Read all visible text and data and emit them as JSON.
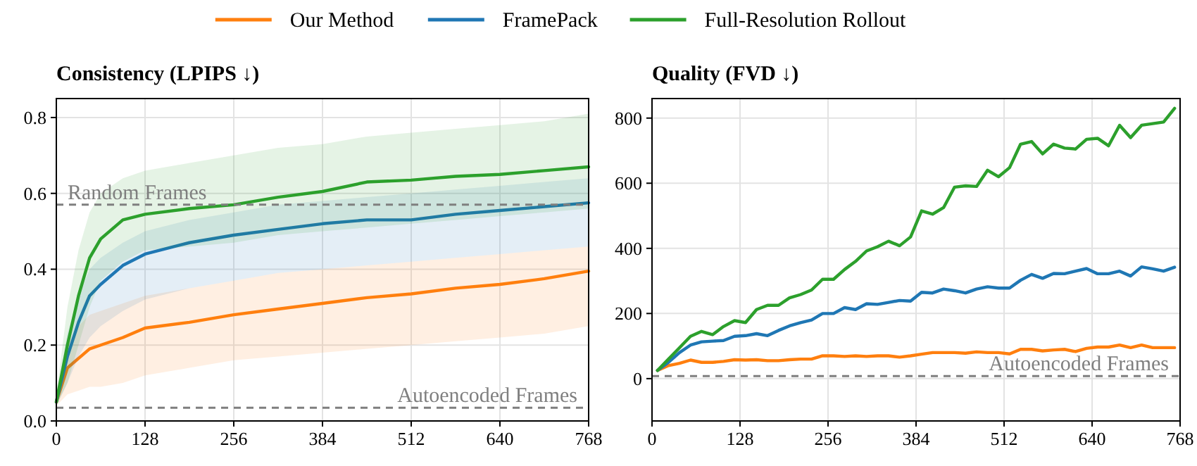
{
  "chart_data": [
    {
      "type": "line",
      "title": "Consistency (LPIPS ↓)",
      "legend": "top",
      "grid": true,
      "xlim": [
        0,
        768
      ],
      "ylim": [
        0,
        0.85
      ],
      "xticks": [
        0,
        128,
        256,
        384,
        512,
        640,
        768
      ],
      "yticks": [
        {
          "value": 0,
          "label": "0.0"
        },
        {
          "value": 0.2,
          "label": "0.2"
        },
        {
          "value": 0.4,
          "label": "0.4"
        },
        {
          "value": 0.6,
          "label": "0.6"
        },
        {
          "value": 0.8,
          "label": "0.8"
        }
      ],
      "ref_lines": [
        {
          "axis": "y",
          "value": 0.57,
          "label": "Random Frames",
          "color": "#7f7f7f",
          "line_style": "dashed"
        },
        {
          "axis": "y",
          "value": 0.035,
          "label": "Autoencoded Frames",
          "color": "#7f7f7f",
          "line_style": "dashed"
        }
      ],
      "x": [
        0,
        16,
        32,
        48,
        64,
        96,
        128,
        192,
        256,
        320,
        384,
        448,
        512,
        576,
        640,
        704,
        768
      ],
      "series": [
        {
          "name": "Our Method",
          "color": "#ff7f0e",
          "values": [
            0.05,
            0.14,
            0.165,
            0.19,
            0.2,
            0.22,
            0.245,
            0.26,
            0.28,
            0.295,
            0.31,
            0.325,
            0.335,
            0.35,
            0.36,
            0.375,
            0.395
          ],
          "lower": [
            0.04,
            0.07,
            0.08,
            0.09,
            0.09,
            0.1,
            0.12,
            0.14,
            0.16,
            0.17,
            0.18,
            0.19,
            0.2,
            0.21,
            0.22,
            0.23,
            0.25
          ],
          "upper": [
            0.06,
            0.2,
            0.25,
            0.28,
            0.29,
            0.31,
            0.33,
            0.35,
            0.37,
            0.39,
            0.4,
            0.41,
            0.42,
            0.43,
            0.44,
            0.45,
            0.46
          ]
        },
        {
          "name": "FramePack",
          "color": "#1f77b4",
          "values": [
            0.05,
            0.17,
            0.26,
            0.33,
            0.36,
            0.41,
            0.44,
            0.47,
            0.49,
            0.505,
            0.52,
            0.53,
            0.53,
            0.545,
            0.555,
            0.565,
            0.575
          ],
          "lower": [
            0.04,
            0.1,
            0.17,
            0.22,
            0.25,
            0.29,
            0.32,
            0.35,
            0.37,
            0.39,
            0.4,
            0.41,
            0.42,
            0.43,
            0.44,
            0.45,
            0.46
          ],
          "upper": [
            0.06,
            0.23,
            0.33,
            0.4,
            0.43,
            0.47,
            0.5,
            0.53,
            0.55,
            0.57,
            0.58,
            0.59,
            0.6,
            0.61,
            0.62,
            0.63,
            0.64
          ]
        },
        {
          "name": "Full-Resolution Rollout",
          "color": "#2ca02c",
          "values": [
            0.05,
            0.2,
            0.33,
            0.43,
            0.48,
            0.53,
            0.545,
            0.56,
            0.57,
            0.59,
            0.605,
            0.63,
            0.635,
            0.645,
            0.65,
            0.66,
            0.67
          ],
          "lower": [
            0.04,
            0.1,
            0.2,
            0.3,
            0.37,
            0.42,
            0.45,
            0.46,
            0.47,
            0.49,
            0.5,
            0.51,
            0.52,
            0.53,
            0.54,
            0.55,
            0.56
          ],
          "upper": [
            0.07,
            0.3,
            0.45,
            0.55,
            0.6,
            0.64,
            0.66,
            0.68,
            0.7,
            0.72,
            0.73,
            0.75,
            0.76,
            0.77,
            0.78,
            0.79,
            0.81
          ]
        }
      ]
    },
    {
      "type": "line",
      "title": "Quality (FVD ↓)",
      "grid": true,
      "xlim": [
        0,
        768
      ],
      "ylim": [
        -130,
        860
      ],
      "xticks": [
        0,
        128,
        256,
        384,
        512,
        640,
        768
      ],
      "yticks": [
        0,
        200,
        400,
        600,
        800
      ],
      "ref_lines": [
        {
          "axis": "y",
          "value": 8,
          "label": "Autoencoded Frames",
          "color": "#7f7f7f",
          "line_style": "dashed"
        }
      ],
      "x": [
        8,
        24,
        40,
        56,
        72,
        88,
        104,
        120,
        136,
        152,
        168,
        184,
        200,
        216,
        232,
        248,
        264,
        280,
        296,
        312,
        328,
        344,
        360,
        376,
        392,
        408,
        424,
        440,
        456,
        472,
        488,
        504,
        520,
        536,
        552,
        568,
        584,
        600,
        616,
        632,
        648,
        664,
        680,
        696,
        712,
        728,
        744,
        760
      ],
      "series": [
        {
          "color": "#ff7f0e",
          "values": [
            25,
            40,
            47,
            57,
            50,
            50,
            53,
            58,
            57,
            58,
            55,
            55,
            58,
            60,
            60,
            70,
            70,
            68,
            70,
            68,
            70,
            70,
            66,
            70,
            75,
            80,
            80,
            80,
            78,
            82,
            80,
            80,
            76,
            90,
            90,
            85,
            88,
            90,
            83,
            93,
            97,
            97,
            103,
            95,
            103,
            95,
            95,
            95
          ]
        },
        {
          "color": "#1f77b4",
          "values": [
            25,
            50,
            80,
            103,
            113,
            115,
            117,
            130,
            132,
            138,
            132,
            148,
            162,
            172,
            180,
            200,
            200,
            218,
            212,
            230,
            228,
            234,
            240,
            238,
            265,
            263,
            275,
            270,
            263,
            275,
            282,
            278,
            278,
            302,
            320,
            308,
            323,
            322,
            330,
            338,
            322,
            322,
            330,
            315,
            343,
            337,
            330,
            342
          ]
        },
        {
          "color": "#2ca02c",
          "values": [
            25,
            60,
            95,
            130,
            145,
            135,
            160,
            178,
            172,
            212,
            225,
            225,
            248,
            258,
            272,
            305,
            305,
            335,
            360,
            392,
            405,
            422,
            408,
            435,
            515,
            505,
            525,
            588,
            592,
            590,
            640,
            620,
            648,
            720,
            728,
            690,
            720,
            708,
            705,
            735,
            738,
            715,
            778,
            740,
            778,
            783,
            788,
            830
          ]
        }
      ]
    }
  ]
}
